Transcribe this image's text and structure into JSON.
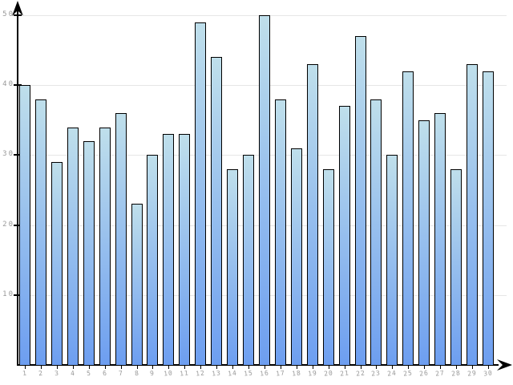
{
  "chart_data": {
    "type": "bar",
    "title": "",
    "xlabel": "",
    "ylabel": "",
    "categories": [
      "1",
      "2",
      "3",
      "4",
      "5",
      "6",
      "7",
      "8",
      "9",
      "10",
      "11",
      "12",
      "13",
      "14",
      "15",
      "16",
      "17",
      "18",
      "19",
      "20",
      "21",
      "22",
      "23",
      "24",
      "25",
      "26",
      "27",
      "28",
      "29",
      "30"
    ],
    "values": [
      40,
      38,
      29,
      34,
      32,
      34,
      36,
      23,
      30,
      33,
      33,
      49,
      44,
      28,
      30,
      50,
      38,
      31,
      43,
      28,
      37,
      47,
      38,
      30,
      42,
      35,
      36,
      28,
      43,
      42
    ],
    "ylim": [
      0,
      50
    ],
    "yticks": [
      10,
      20,
      30,
      40,
      50
    ],
    "grid": true,
    "legend": false
  },
  "colors": {
    "background": "#ffffff",
    "bar_gradient_top": "#bfdfeb",
    "bar_gradient_bottom": "#6d9ef0",
    "bar_border": "#000000",
    "gridline": "#e6e6e6",
    "axis": "#000000",
    "tick_label": "#999999"
  }
}
